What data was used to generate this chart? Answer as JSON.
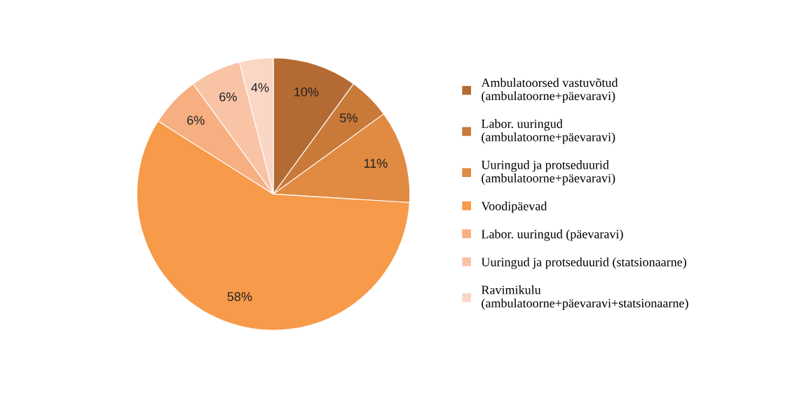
{
  "chart_data": {
    "type": "pie",
    "categories": [
      "Ambulatoorsed vastuvõtud (ambulatoorne+päevaravi)",
      "Labor. uuringud (ambulatoorne+päevaravi)",
      "Uuringud ja protseduurid (ambulatoorne+päevaravi)",
      "Voodipäevad",
      "Labor. uuringud (päevaravi)",
      "Uuringud ja protseduurid (statsionaarne)",
      "Ravimikulu (ambulatoorne+päevaravi+statsionaarne)"
    ],
    "values": [
      10,
      5,
      11,
      58,
      6,
      6,
      4
    ],
    "value_labels": [
      "10%",
      "5%",
      "11%",
      "58%",
      "6%",
      "6%",
      "4%"
    ],
    "colors": [
      "#b36b33",
      "#c97938",
      "#e08a42",
      "#f79a4a",
      "#f7af82",
      "#f9c3a6",
      "#fad6c4"
    ],
    "legend": "right"
  }
}
